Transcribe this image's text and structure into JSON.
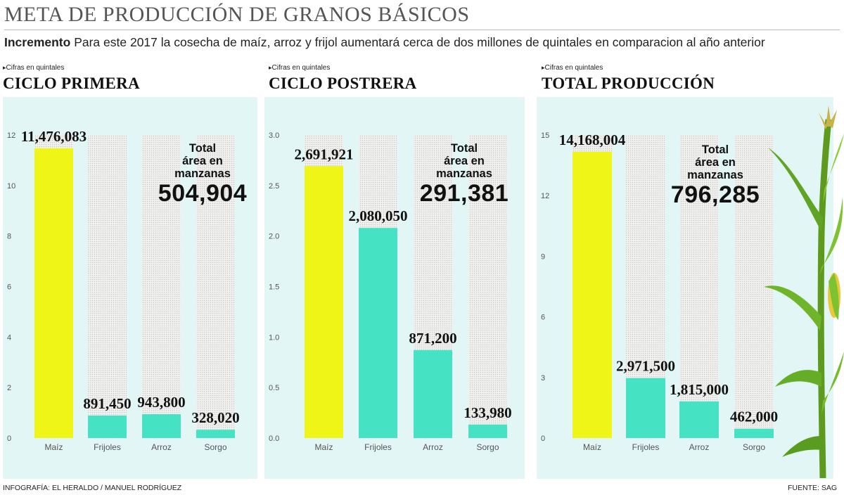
{
  "header": {
    "title": "META DE PRODUCCIÓN DE GRANOS BÁSICOS",
    "lead": "Incremento",
    "text": "Para este 2017 la cosecha de maíz, arroz y frijol aumentará cerca de dos millones de quintales  en comparacion al año anterior"
  },
  "colors": {
    "background": "#e2f6f5",
    "highlight": "#f0f518",
    "bars": "#46e2c4"
  },
  "units_label": "Cifras en quintales",
  "area_label": [
    "Total",
    "área en",
    "manzanas"
  ],
  "chart_data": [
    {
      "type": "bar",
      "title": "CICLO PRIMERA",
      "categories": [
        "Maíz",
        "Frijoles",
        "Arroz",
        "Sorgo"
      ],
      "values": [
        11476083,
        891450,
        943800,
        328020
      ],
      "value_labels": [
        "11,476,083",
        "891,450",
        "943,800",
        "328,020"
      ],
      "yticks": [
        "0",
        "2",
        "4",
        "6",
        "8",
        "10",
        "12"
      ],
      "ylim": [
        0,
        12
      ],
      "unit_scale": 1000000,
      "area_total": "504,904"
    },
    {
      "type": "bar",
      "title": "CICLO POSTRERA",
      "categories": [
        "Maíz",
        "Frijoles",
        "Arroz",
        "Sorgo"
      ],
      "values": [
        2691921,
        2080050,
        871200,
        133980
      ],
      "value_labels": [
        "2,691,921",
        "2,080,050",
        "871,200",
        "133,980"
      ],
      "yticks": [
        "0.0",
        "0.5",
        "1.0",
        "1.5",
        "2.0",
        "2.5",
        "3.0"
      ],
      "ylim": [
        0,
        3
      ],
      "unit_scale": 1000000,
      "area_total": "291,381"
    },
    {
      "type": "bar",
      "title": "TOTAL PRODUCCIÓN",
      "categories": [
        "Maíz",
        "Frijoles",
        "Arroz",
        "Sorgo"
      ],
      "values": [
        14168004,
        2971500,
        1815000,
        462000
      ],
      "value_labels": [
        "14,168,004",
        "2,971,500",
        "1,815,000",
        "462,000"
      ],
      "yticks": [
        "0",
        "3",
        "6",
        "9",
        "12",
        "15"
      ],
      "ylim": [
        0,
        15
      ],
      "unit_scale": 1000000,
      "area_total": "796,285"
    }
  ],
  "footer": {
    "credit": "INFOGRAFÍA: EL HERALDO / MANUEL RODRÍGUEZ",
    "source": "FUENTE: SAG"
  }
}
